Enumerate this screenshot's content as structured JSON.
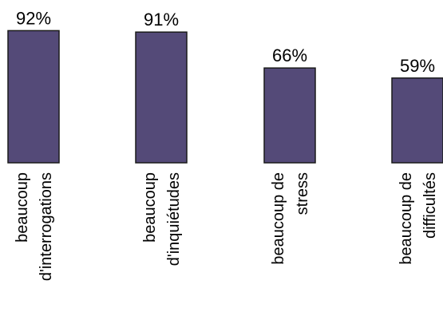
{
  "chart_data": {
    "type": "bar",
    "categories": [
      [
        "beaucoup",
        "d'interrogations"
      ],
      [
        "beaucoup",
        "d'inquiétudes"
      ],
      [
        "beaucoup de",
        "stress"
      ],
      [
        "beaucoup de",
        "difficultés"
      ]
    ],
    "values": [
      92,
      91,
      66,
      59
    ],
    "value_labels": [
      "92%",
      "91%",
      "66%",
      "59%"
    ],
    "ylim": [
      0,
      100
    ],
    "bar_color": "#544a78",
    "value_unit": "%",
    "grid": false,
    "legend": "none"
  }
}
